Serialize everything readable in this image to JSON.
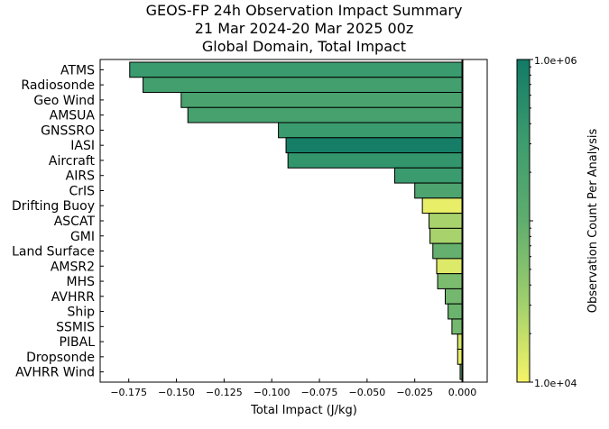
{
  "chart_data": {
    "type": "bar",
    "orientation": "horizontal",
    "title": [
      "GEOS-FP 24h Observation Impact Summary",
      "21 Mar 2024-20 Mar 2025 00z",
      "Global Domain, Total Impact"
    ],
    "xlabel": "Total Impact (J/kg)",
    "ylabel": "",
    "xlim": [
      -0.19,
      0.013
    ],
    "xticks": [
      -0.175,
      -0.15,
      -0.125,
      -0.1,
      -0.075,
      -0.05,
      -0.025,
      0.0
    ],
    "xtick_labels": [
      "−0.175",
      "−0.150",
      "−0.125",
      "−0.100",
      "−0.075",
      "−0.050",
      "−0.025",
      "0.000"
    ],
    "grid": false,
    "categories": [
      "ATMS",
      "Radiosonde",
      "Geo Wind",
      "AMSUA",
      "GNSSRO",
      "IASI",
      "Aircraft",
      "AIRS",
      "CrIS",
      "Drifting Buoy",
      "ASCAT",
      "GMI",
      "Land Surface",
      "AMSR2",
      "MHS",
      "AVHRR",
      "Ship",
      "SSMIS",
      "PIBAL",
      "Dropsonde",
      "AVHRR Wind"
    ],
    "values": [
      -0.1745,
      -0.1675,
      -0.1475,
      -0.144,
      -0.0965,
      -0.0925,
      -0.0915,
      -0.0355,
      -0.025,
      -0.021,
      -0.0175,
      -0.017,
      -0.0155,
      -0.0135,
      -0.013,
      -0.009,
      -0.0075,
      -0.0055,
      -0.0025,
      -0.0025,
      -0.0012
    ],
    "observation_counts": [
      330000,
      250000,
      200000,
      230000,
      330000,
      900000,
      400000,
      330000,
      180000,
      12000,
      28000,
      28000,
      90000,
      14000,
      60000,
      70000,
      80000,
      70000,
      15000,
      12000,
      90000
    ],
    "colorbar": {
      "label": "Observation Count Per Analysis",
      "scale": "log",
      "range": [
        10000,
        1000000
      ],
      "tick_labels": [
        "1.0e+06",
        "1.0e+04"
      ],
      "colors": [
        "#f6f466",
        "#9fcf6d",
        "#5fad6e",
        "#3c9c6e",
        "#127a66"
      ]
    }
  }
}
